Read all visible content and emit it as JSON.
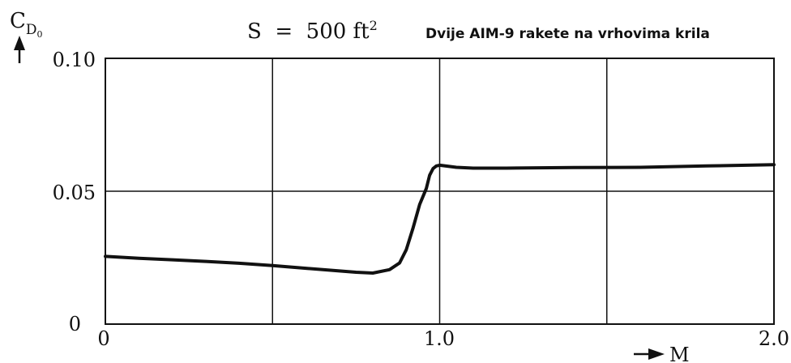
{
  "chart_data": {
    "type": "line",
    "ylabel_main": "C",
    "ylabel_sub": "D",
    "ylabel_subsub": "0",
    "xlabel": "M",
    "area_label": "S  =  500 ft",
    "area_exp": "2",
    "title": "Dvije AIM-9 rakete na vrhovima krila",
    "x_ticks": [
      "0",
      "1.0",
      "2.0"
    ],
    "y_ticks": [
      "0",
      "0.05",
      "0.10"
    ],
    "xlim": [
      0,
      2.0
    ],
    "ylim": [
      0,
      0.1
    ],
    "grid": true,
    "x_grid": [
      0,
      0.5,
      1.0,
      1.5,
      2.0
    ],
    "y_grid": [
      0,
      0.05,
      0.1
    ],
    "series": [
      {
        "x": [
          0,
          0.1,
          0.2,
          0.3,
          0.4,
          0.5,
          0.6,
          0.7,
          0.75,
          0.8,
          0.85,
          0.88,
          0.9,
          0.92,
          0.94,
          0.96,
          0.97,
          0.98,
          0.99,
          1.0,
          1.05,
          1.1,
          1.2,
          1.4,
          1.6,
          1.8,
          2.0
        ],
        "y": [
          0.0255,
          0.0248,
          0.0242,
          0.0236,
          0.0229,
          0.022,
          0.021,
          0.02,
          0.0195,
          0.0192,
          0.0205,
          0.023,
          0.028,
          0.036,
          0.045,
          0.051,
          0.056,
          0.0585,
          0.0595,
          0.0598,
          0.059,
          0.0587,
          0.0587,
          0.0589,
          0.059,
          0.0595,
          0.06
        ]
      }
    ]
  }
}
